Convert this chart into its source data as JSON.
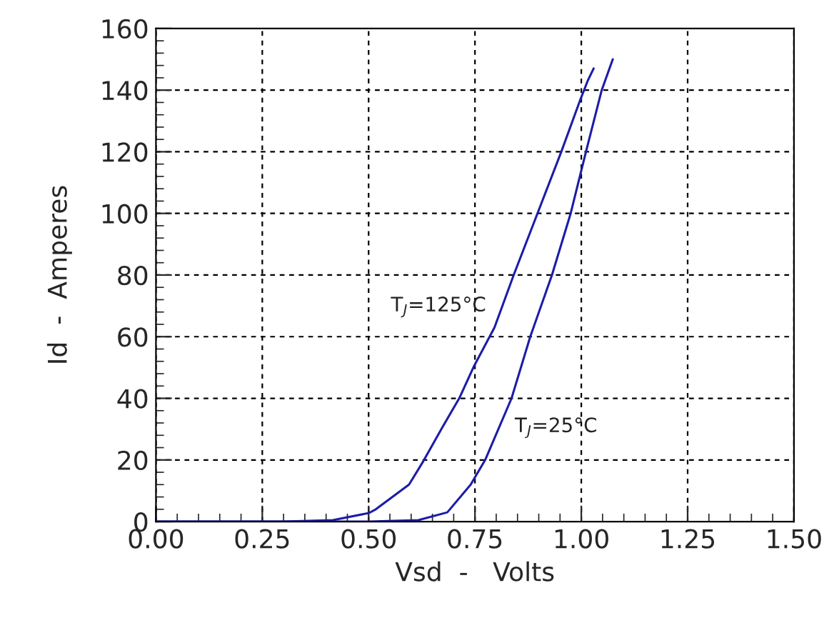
{
  "chart_data": {
    "type": "line",
    "xlabel": "Vsd  -   Volts",
    "ylabel": "Id  -  Amperes",
    "series": [
      {
        "name": "T$_{J}$=125°C",
        "color": "#1c1ca8",
        "x": [
          0.0,
          0.3,
          0.416,
          0.501,
          0.517,
          0.595,
          0.629,
          0.673,
          0.713,
          0.748,
          0.796,
          0.841,
          0.897,
          0.953,
          0.998,
          1.015,
          1.029
        ],
        "values": [
          0,
          0,
          0.5,
          2.8,
          4,
          12,
          19.7,
          30.5,
          40,
          50.5,
          63,
          80,
          100,
          120,
          137,
          143,
          147
        ]
      },
      {
        "name": "T$_{J}$=25°C",
        "color": "#1c1ca8",
        "x": [
          0.0,
          0.5,
          0.617,
          0.685,
          0.74,
          0.774,
          0.836,
          0.88,
          0.931,
          0.975,
          1.011,
          1.048,
          1.074
        ],
        "values": [
          0,
          0,
          0.5,
          3,
          12,
          20,
          40,
          60,
          80,
          100,
          120,
          140,
          150
        ]
      }
    ],
    "xlim": [
      0,
      1.5
    ],
    "ylim": [
      0,
      160
    ],
    "xticks": [
      {
        "value": 0,
        "label": "0.00"
      },
      {
        "value": 0.25,
        "label": "0.25"
      },
      {
        "value": 0.5,
        "label": "0.50"
      },
      {
        "value": 0.75,
        "label": "0.75"
      },
      {
        "value": 1.0,
        "label": "1.00"
      },
      {
        "value": 1.25,
        "label": "1.25"
      },
      {
        "value": 1.5,
        "label": "1.50"
      }
    ],
    "yticks": [
      0,
      20,
      40,
      60,
      80,
      100,
      120,
      140,
      160
    ],
    "grid": true,
    "legend": false,
    "marker": "none",
    "line_style": "solid"
  }
}
